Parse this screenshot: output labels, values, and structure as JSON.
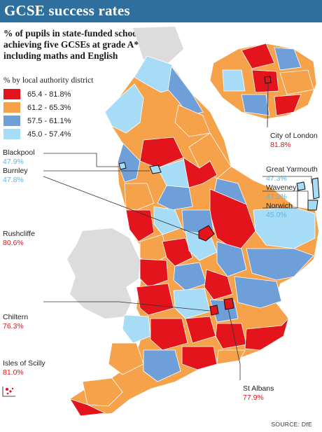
{
  "title": "GCSE success rates",
  "subtitle": "% of pupils in state-funded schools achieving five GCSEs at grade A*-C, including maths and English",
  "legend": {
    "title": "% by local authority district",
    "items": [
      {
        "label": "65.4 - 81.8%",
        "color": "#e3141b"
      },
      {
        "label": "61.2 - 65.3%",
        "color": "#f5a24b"
      },
      {
        "label": "57.5 - 61.1%",
        "color": "#6f9fd8"
      },
      {
        "label": "45.0 - 57.4%",
        "color": "#a6dcf6"
      }
    ]
  },
  "callouts": [
    {
      "name": "Blackpool",
      "value": "47.9%"
    },
    {
      "name": "Burnley",
      "value": "47.8%"
    },
    {
      "name": "Rushcliffe",
      "value": "80.6%"
    },
    {
      "name": "Chiltern",
      "value": "76.3%"
    },
    {
      "name": "Isles of Scilly",
      "value": "81.0%"
    },
    {
      "name": "City of London",
      "value": "81.8%"
    },
    {
      "name": "Great Yarmouth",
      "value": "47.3%"
    },
    {
      "name": "Waveney",
      "value": "47.2%"
    },
    {
      "name": "Norwich",
      "value": "45.0%"
    },
    {
      "name": "St Albans",
      "value": "77.9%"
    }
  ],
  "source": "SOURCE: DfE",
  "colors": {
    "header": "#2f6f9e",
    "land": "#dcdcdc",
    "outline": "#ffffff"
  }
}
